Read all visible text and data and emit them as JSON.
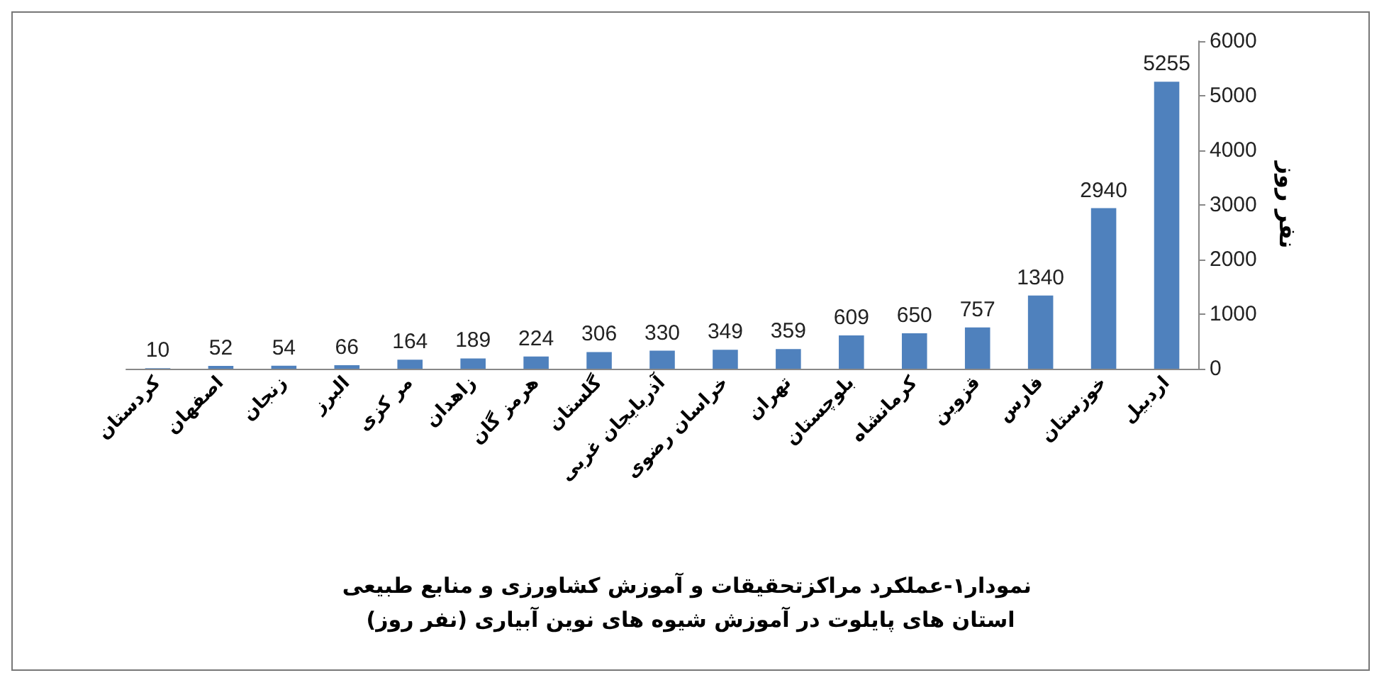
{
  "chart_data": {
    "type": "bar",
    "title": "نمودار۱-عملکرد مراکزتحقیقات و آموزش کشاورزی و منابع طبیعی استان های پایلوت در آموزش شیوه های نوین آبیاری (نفر روز)",
    "ylabel": "نفر روز",
    "categories": [
      "کردستان",
      "اصفهان",
      "زنجان",
      "البرز",
      "مر کزی",
      "زاهدان",
      "هرمز گان",
      "گلستان",
      "آذربایجان غربی",
      "خراسان رضوی",
      "تهران",
      "بلوچستان",
      "کرمانشاه",
      "قزوین",
      "فارس",
      "خوزستان",
      "اردبیل"
    ],
    "values": [
      10,
      52,
      54,
      66,
      164,
      189,
      224,
      306,
      330,
      349,
      359,
      609,
      650,
      757,
      1340,
      2940,
      5255
    ],
    "color": "#4f81bd",
    "ylim": [
      0,
      6000
    ],
    "yticks": [
      0,
      1000,
      2000,
      3000,
      4000,
      5000,
      6000
    ],
    "grid": false,
    "data_labels": true
  }
}
